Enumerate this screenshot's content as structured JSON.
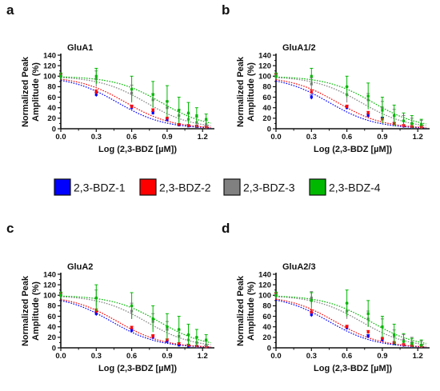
{
  "chart_data": {
    "type": "scatter",
    "xlabel": "Log (2,3-BDZ [µM])",
    "ylabel": "Normalized Peak Amplitude (%)",
    "xlim": [
      0.0,
      1.3
    ],
    "ylim": [
      0,
      140
    ],
    "xticks": [
      "0.0",
      "0.3",
      "0.6",
      "0.9",
      "1.2"
    ],
    "yticks": [
      "0",
      "20",
      "40",
      "60",
      "80",
      "100",
      "120",
      "140"
    ],
    "legend_position": "center-row",
    "series_meta": [
      {
        "name": "2,3-BDZ-1",
        "color": "#0000ff"
      },
      {
        "name": "2,3-BDZ-2",
        "color": "#ff0000"
      },
      {
        "name": "2,3-BDZ-3",
        "color": "#808080"
      },
      {
        "name": "2,3-BDZ-4",
        "color": "#00b800"
      }
    ],
    "x": [
      0.0,
      0.3,
      0.6,
      0.78,
      0.9,
      1.0,
      1.08,
      1.15,
      1.23
    ],
    "panels": [
      {
        "letter": "a",
        "title": "GluA1",
        "series": [
          {
            "values": [
              100,
              65,
              40,
              30,
              17,
              7,
              5,
              4,
              3
            ],
            "errors": [
              4,
              4,
              3,
              3,
              2,
              2,
              2,
              2,
              2
            ]
          },
          {
            "values": [
              100,
              70,
              42,
              35,
              20,
              8,
              6,
              5,
              3
            ],
            "errors": [
              4,
              4,
              3,
              3,
              2,
              2,
              2,
              2,
              2
            ]
          },
          {
            "values": [
              100,
              95,
              68,
              55,
              40,
              25,
              18,
              12,
              8
            ],
            "errors": [
              6,
              15,
              15,
              12,
              12,
              12,
              10,
              10,
              8
            ]
          },
          {
            "values": [
              100,
              100,
              75,
              65,
              52,
              35,
              30,
              25,
              18
            ],
            "errors": [
              6,
              15,
              25,
              25,
              30,
              25,
              20,
              15,
              10
            ]
          }
        ]
      },
      {
        "letter": "b",
        "title": "GluA1/2",
        "series": [
          {
            "values": [
              100,
              60,
              40,
              25,
              20,
              10,
              5,
              3,
              3
            ],
            "errors": [
              4,
              4,
              3,
              3,
              2,
              2,
              2,
              2,
              2
            ]
          },
          {
            "values": [
              100,
              70,
              42,
              30,
              18,
              10,
              6,
              4,
              3
            ],
            "errors": [
              4,
              4,
              3,
              3,
              2,
              2,
              2,
              2,
              2
            ]
          },
          {
            "values": [
              100,
              85,
              65,
              55,
              40,
              25,
              15,
              10,
              8
            ],
            "errors": [
              6,
              12,
              15,
              12,
              12,
              12,
              10,
              10,
              8
            ]
          },
          {
            "values": [
              100,
              100,
              80,
              62,
              35,
              25,
              15,
              10,
              8
            ],
            "errors": [
              6,
              15,
              20,
              25,
              25,
              20,
              15,
              15,
              10
            ]
          }
        ]
      },
      {
        "letter": "c",
        "title": "GluA2",
        "series": [
          {
            "values": [
              100,
              65,
              33,
              20,
              12,
              5,
              3,
              2,
              2
            ],
            "errors": [
              4,
              4,
              3,
              3,
              2,
              2,
              2,
              2,
              2
            ]
          },
          {
            "values": [
              100,
              70,
              38,
              22,
              15,
              8,
              5,
              3,
              2
            ],
            "errors": [
              4,
              4,
              3,
              3,
              2,
              2,
              2,
              2,
              2
            ]
          },
          {
            "values": [
              100,
              95,
              70,
              50,
              35,
              22,
              15,
              10,
              5
            ],
            "errors": [
              6,
              15,
              15,
              15,
              15,
              12,
              10,
              10,
              8
            ]
          },
          {
            "values": [
              100,
              95,
              80,
              55,
              40,
              35,
              25,
              20,
              15
            ],
            "errors": [
              6,
              25,
              25,
              25,
              25,
              25,
              20,
              15,
              10
            ]
          }
        ]
      },
      {
        "letter": "d",
        "title": "GluA2/3",
        "series": [
          {
            "values": [
              100,
              63,
              38,
              22,
              15,
              8,
              5,
              3,
              3
            ],
            "errors": [
              4,
              4,
              3,
              3,
              2,
              2,
              2,
              2,
              2
            ]
          },
          {
            "values": [
              100,
              68,
              40,
              30,
              18,
              10,
              6,
              4,
              3
            ],
            "errors": [
              4,
              4,
              3,
              3,
              2,
              2,
              2,
              2,
              2
            ]
          },
          {
            "values": [
              100,
              95,
              70,
              55,
              40,
              22,
              15,
              10,
              5
            ],
            "errors": [
              6,
              12,
              15,
              15,
              15,
              12,
              10,
              10,
              8
            ]
          },
          {
            "values": [
              100,
              90,
              85,
              65,
              40,
              25,
              12,
              8,
              5
            ],
            "errors": [
              6,
              15,
              25,
              25,
              20,
              20,
              15,
              10,
              10
            ]
          }
        ]
      }
    ],
    "fit_curves": [
      {
        "panel": "a",
        "ic50_log": [
          0.48,
          0.55,
          0.72,
          0.85
        ]
      },
      {
        "panel": "b",
        "ic50_log": [
          0.45,
          0.52,
          0.72,
          0.82
        ]
      },
      {
        "panel": "c",
        "ic50_log": [
          0.43,
          0.48,
          0.72,
          0.83
        ]
      },
      {
        "panel": "d",
        "ic50_log": [
          0.45,
          0.5,
          0.72,
          0.8
        ]
      }
    ]
  }
}
